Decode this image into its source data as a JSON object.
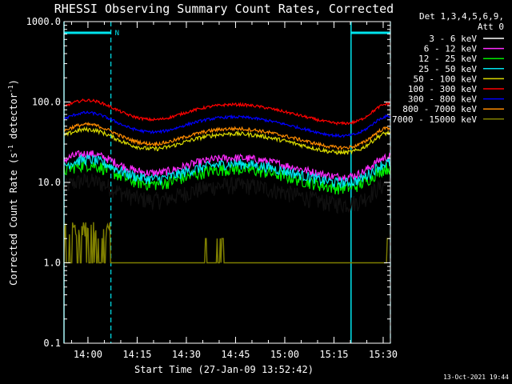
{
  "chart_data": {
    "type": "line",
    "title": "RHESSI Observing Summary Count Rates, Corrected",
    "xlabel": "Start Time (27-Jan-09 13:52:42)",
    "ylabel_main": "Corrected Count Rate (s",
    "ylabel_sup1": "-1",
    "ylabel_mid": " detector",
    "ylabel_sup2": "-1",
    "ylabel_end": ")",
    "yscale": "log",
    "ylim": [
      0.1,
      1000
    ],
    "y_ticks": [
      "1000.0",
      "100.0",
      "10.0",
      "1.0",
      "0.1"
    ],
    "x_ticks": [
      "14:00",
      "14:15",
      "14:30",
      "14:45",
      "15:00",
      "15:15",
      "15:30"
    ],
    "x_tick_minutes": [
      7.3,
      22.3,
      37.3,
      52.3,
      67.3,
      82.3,
      97.3
    ],
    "xlim_minutes": [
      0,
      99.5
    ],
    "legend_header": [
      "Det 1,3,4,5,6,9,",
      "Att 0"
    ],
    "annotations": {
      "night_label": "N"
    },
    "night_intervals_minutes": [
      [
        0,
        14.3
      ],
      [
        87.5,
        99.5
      ]
    ],
    "series": [
      {
        "name": "3 - 6 keV",
        "color": "#000000",
        "base": 6.0,
        "noise": 0.25
      },
      {
        "name": "6 - 12 keV",
        "color": "#ff2bff",
        "base": 13.0,
        "noise": 0.12
      },
      {
        "name": "12 - 25 keV",
        "color": "#00ee00",
        "base": 9.5,
        "noise": 0.18
      },
      {
        "name": "25 - 50 keV",
        "color": "#00e5ee",
        "base": 11.0,
        "noise": 0.15
      },
      {
        "name": "50 - 100 keV",
        "color": "#d8d800",
        "base": 26.0,
        "noise": 0.06
      },
      {
        "name": "100 - 300 keV",
        "color": "#ff0000",
        "base": 60.0,
        "noise": 0.04
      },
      {
        "name": "300 - 800 keV",
        "color": "#0000ff",
        "base": 42.0,
        "noise": 0.04
      },
      {
        "name": "800 - 7000 keV",
        "color": "#ff8c00",
        "base": 30.0,
        "noise": 0.05
      },
      {
        "name": "7000 - 15000 keV",
        "color": "#808000",
        "base": 1.0,
        "noise": 0.0
      }
    ]
  },
  "footer": {
    "date": "13-Oct-2021 19:44"
  }
}
